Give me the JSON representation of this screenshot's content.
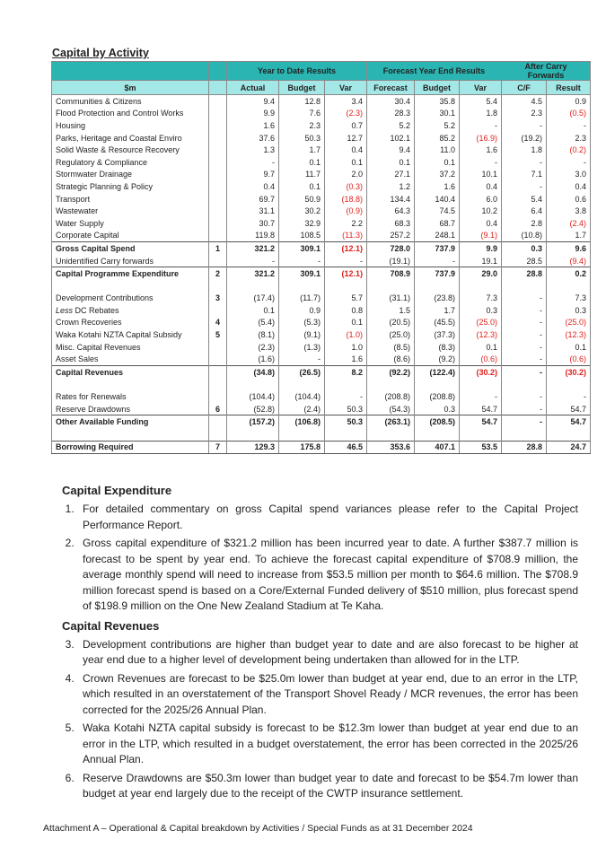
{
  "table_title": "Capital by Activity",
  "header": {
    "groups": [
      "Year to Date Results",
      "Forecast Year End Results",
      "After Carry Forwards"
    ],
    "unit": "$m",
    "columns": [
      "Actual",
      "Budget",
      "Var",
      "Forecast",
      "Budget",
      "Var",
      "C/F",
      "Result"
    ]
  },
  "rows": [
    {
      "label": "Communities & Citizens",
      "note": "",
      "values": [
        "9.4",
        "12.8",
        "3.4",
        "30.4",
        "35.8",
        "5.4",
        "4.5",
        "0.9"
      ]
    },
    {
      "label": "Flood Protection and Control Works",
      "note": "",
      "values": [
        "9.9",
        "7.6",
        "(2.3)",
        "28.3",
        "30.1",
        "1.8",
        "2.3",
        "(0.5)"
      ]
    },
    {
      "label": "Housing",
      "note": "",
      "values": [
        "1.6",
        "2.3",
        "0.7",
        "5.2",
        "5.2",
        "-",
        "-",
        "-"
      ]
    },
    {
      "label": "Parks, Heritage and Coastal Enviro",
      "note": "",
      "values": [
        "37.6",
        "50.3",
        "12.7",
        "102.1",
        "85.2",
        "(16.9)",
        "(19.2)",
        "2.3"
      ]
    },
    {
      "label": "Solid Waste & Resource Recovery",
      "note": "",
      "values": [
        "1.3",
        "1.7",
        "0.4",
        "9.4",
        "11.0",
        "1.6",
        "1.8",
        "(0.2)"
      ]
    },
    {
      "label": "Regulatory & Compliance",
      "note": "",
      "values": [
        "-",
        "0.1",
        "0.1",
        "0.1",
        "0.1",
        "-",
        "-",
        "-"
      ]
    },
    {
      "label": "Stormwater Drainage",
      "note": "",
      "values": [
        "9.7",
        "11.7",
        "2.0",
        "27.1",
        "37.2",
        "10.1",
        "7.1",
        "3.0"
      ]
    },
    {
      "label": "Strategic Planning & Policy",
      "note": "",
      "values": [
        "0.4",
        "0.1",
        "(0.3)",
        "1.2",
        "1.6",
        "0.4",
        "-",
        "0.4"
      ]
    },
    {
      "label": "Transport",
      "note": "",
      "values": [
        "69.7",
        "50.9",
        "(18.8)",
        "134.4",
        "140.4",
        "6.0",
        "5.4",
        "0.6"
      ]
    },
    {
      "label": "Wastewater",
      "note": "",
      "values": [
        "31.1",
        "30.2",
        "(0.9)",
        "64.3",
        "74.5",
        "10.2",
        "6.4",
        "3.8"
      ]
    },
    {
      "label": "Water Supply",
      "note": "",
      "values": [
        "30.7",
        "32.9",
        "2.2",
        "68.3",
        "68.7",
        "0.4",
        "2.8",
        "(2.4)"
      ]
    },
    {
      "label": "Corporate Capital",
      "note": "",
      "values": [
        "119.8",
        "108.5",
        "(11.3)",
        "257.2",
        "248.1",
        "(9.1)",
        "(10.8)",
        "1.7"
      ]
    },
    {
      "label": "Gross Capital Spend",
      "note": "1",
      "total": true,
      "values": [
        "321.2",
        "309.1",
        "(12.1)",
        "728.0",
        "737.9",
        "9.9",
        "0.3",
        "9.6"
      ]
    },
    {
      "label": "Unidentified Carry forwards",
      "note": "",
      "values": [
        "-",
        "-",
        "-",
        "(19.1)",
        "-",
        "19.1",
        "28.5",
        "(9.4)"
      ]
    },
    {
      "label": "Capital Programme Expenditure",
      "note": "2",
      "total": true,
      "values": [
        "321.2",
        "309.1",
        "(12.1)",
        "708.9",
        "737.9",
        "29.0",
        "28.8",
        "0.2"
      ]
    },
    {
      "spacer": true
    },
    {
      "label": "Development Contributions",
      "note": "3",
      "values": [
        "(17.4)",
        "(11.7)",
        "5.7",
        "(31.1)",
        "(23.8)",
        "7.3",
        "-",
        "7.3"
      ]
    },
    {
      "label_prefix": "Less",
      "label": " DC Rebates",
      "note": "",
      "values": [
        "0.1",
        "0.9",
        "0.8",
        "1.5",
        "1.7",
        "0.3",
        "-",
        "0.3"
      ]
    },
    {
      "label": "Crown Recoveries",
      "note": "4",
      "values": [
        "(5.4)",
        "(5.3)",
        "0.1",
        "(20.5)",
        "(45.5)",
        "(25.0)",
        "-",
        "(25.0)"
      ]
    },
    {
      "label": "Waka Kotahi NZTA Capital Subsidy",
      "note": "5",
      "values": [
        "(8.1)",
        "(9.1)",
        "(1.0)",
        "(25.0)",
        "(37.3)",
        "(12.3)",
        "-",
        "(12.3)"
      ]
    },
    {
      "label": "Misc. Capital Revenues",
      "note": "",
      "values": [
        "(2.3)",
        "(1.3)",
        "1.0",
        "(8.5)",
        "(8.3)",
        "0.1",
        "-",
        "0.1"
      ]
    },
    {
      "label": "Asset Sales",
      "note": "",
      "values": [
        "(1.6)",
        "-",
        "1.6",
        "(8.6)",
        "(9.2)",
        "(0.6)",
        "-",
        "(0.6)"
      ]
    },
    {
      "label": "Capital Revenues",
      "note": "",
      "total": true,
      "values": [
        "(34.8)",
        "(26.5)",
        "8.2",
        "(92.2)",
        "(122.4)",
        "(30.2)",
        "-",
        "(30.2)"
      ]
    },
    {
      "spacer": true
    },
    {
      "label": "Rates for Renewals",
      "note": "",
      "values": [
        "(104.4)",
        "(104.4)",
        "-",
        "(208.8)",
        "(208.8)",
        "-",
        "-",
        "-"
      ]
    },
    {
      "label": "Reserve Drawdowns",
      "note": "6",
      "values": [
        "(52.8)",
        "(2.4)",
        "50.3",
        "(54.3)",
        "0.3",
        "54.7",
        "-",
        "54.7"
      ]
    },
    {
      "label": "Other Available Funding",
      "note": "",
      "total": true,
      "values": [
        "(157.2)",
        "(106.8)",
        "50.3",
        "(263.1)",
        "(208.5)",
        "54.7",
        "-",
        "54.7"
      ]
    },
    {
      "spacer": true
    },
    {
      "label": "Borrowing Required",
      "note": "7",
      "total": true,
      "last": true,
      "values": [
        "129.3",
        "175.8",
        "46.5",
        "353.6",
        "407.1",
        "53.5",
        "28.8",
        "24.7"
      ]
    }
  ],
  "colors": {
    "header_dark": "#2bb5b2",
    "header_light": "#a3e8e6",
    "negative_variance": "#e0201b"
  },
  "sections": {
    "expenditure_heading": "Capital Expenditure",
    "expenditure_items": [
      "For detailed commentary on gross Capital spend variances please refer to the Capital Project Performance Report.",
      "Gross capital expenditure of $321.2 million has been incurred year to date. A further $387.7 million is forecast to be spent by year end. To achieve the forecast capital expenditure of $708.9 million, the average monthly spend will need to increase from $53.5 million per month to $64.6 million. The $708.9 million forecast spend is based on a Core/External Funded delivery of $510 million, plus forecast spend of $198.9 million on the One New Zealand Stadium at Te Kaha."
    ],
    "revenues_heading": "Capital Revenues",
    "revenues_items": [
      "Development contributions are higher than budget year to date and are also forecast to be higher at year end due to a higher level of development being undertaken than allowed for in the LTP.",
      "Crown Revenues are forecast to be $25.0m lower than budget at year end, due to an error in the LTP, which resulted in an overstatement of the Transport Shovel Ready / MCR revenues, the error has been corrected for the 2025/26 Annual Plan.",
      "Waka Kotahi NZTA capital subsidy is forecast to be $12.3m lower than budget at year end due to an error in the LTP, which resulted in a budget overstatement, the error has been corrected in the 2025/26 Annual Plan.",
      "Reserve Drawdowns are $50.3m lower than budget year to date and forecast to be $54.7m lower than budget at year end largely due to the receipt of the CWTP insurance settlement."
    ]
  },
  "footer": "Attachment A – Operational & Capital breakdown by Activities / Special Funds as at 31 December 2024"
}
